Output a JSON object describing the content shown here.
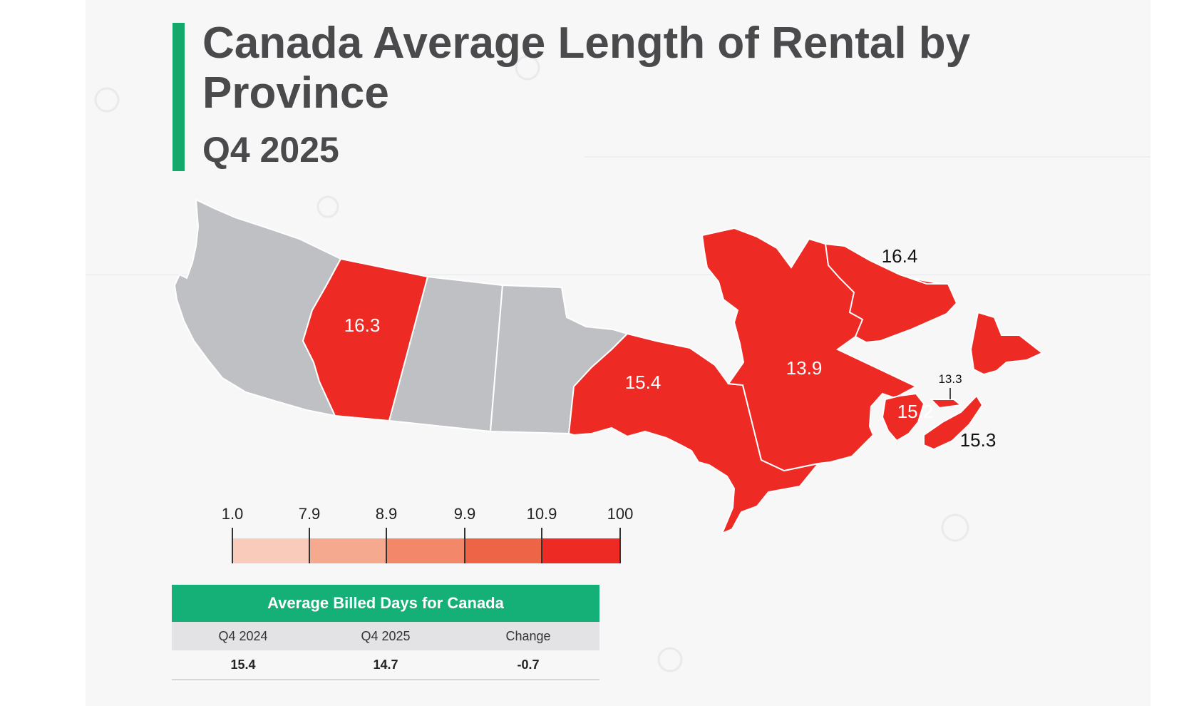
{
  "title": "Canada Average Length of Rental by Province",
  "subtitle": "Q4 2025",
  "colors": {
    "accent": "#14a86a",
    "no_data": "#bfc0c4",
    "highlight": "#ee2a24",
    "scale": [
      "#f8cbbb",
      "#f5a98f",
      "#f2876a",
      "#ee6447",
      "#ee2a24"
    ]
  },
  "provinces": [
    {
      "name": "British Columbia",
      "value": null
    },
    {
      "name": "Alberta",
      "value": "16.3"
    },
    {
      "name": "Saskatchewan",
      "value": null
    },
    {
      "name": "Manitoba",
      "value": null
    },
    {
      "name": "Ontario",
      "value": "15.4"
    },
    {
      "name": "Quebec",
      "value": "13.9"
    },
    {
      "name": "Newfoundland and Labrador",
      "value": "16.4"
    },
    {
      "name": "New Brunswick",
      "value": "15.2"
    },
    {
      "name": "Prince Edward Island",
      "value": "13.3"
    },
    {
      "name": "Nova Scotia",
      "value": "15.3"
    }
  ],
  "legend": {
    "breaks": [
      "1.0",
      "7.9",
      "8.9",
      "9.9",
      "10.9",
      "100"
    ]
  },
  "summary_table": {
    "heading": "Average Billed Days for Canada",
    "columns": [
      "Q4 2024",
      "Q4 2025",
      "Change"
    ],
    "values": [
      "15.4",
      "14.7",
      "-0.7"
    ]
  }
}
